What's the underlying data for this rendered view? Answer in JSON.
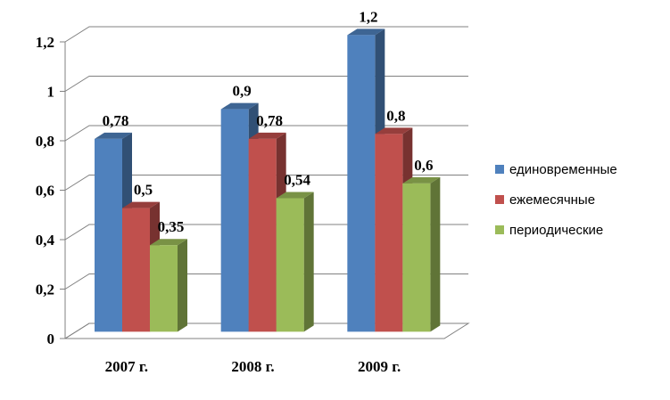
{
  "chart_data": {
    "type": "bar",
    "categories": [
      "2007 г.",
      "2008 г.",
      "2009 г."
    ],
    "series": [
      {
        "name": "единовременные",
        "values": [
          0.78,
          0.9,
          1.2
        ],
        "labels": [
          "0,78",
          "0,9",
          "1,2"
        ],
        "color": "#4F81BD"
      },
      {
        "name": "ежемесячные",
        "values": [
          0.5,
          0.78,
          0.8
        ],
        "labels": [
          "0,5",
          "0,78",
          "0,8"
        ],
        "color": "#C0504D"
      },
      {
        "name": "периодические",
        "values": [
          0.35,
          0.54,
          0.6
        ],
        "labels": [
          "0,35",
          "0,54",
          "0,6"
        ],
        "color": "#9BBB59"
      }
    ],
    "y_ticks": [
      0,
      0.2,
      0.4,
      0.6,
      0.8,
      1,
      1.2
    ],
    "y_tick_labels": [
      "0",
      "0,2",
      "0,4",
      "0,6",
      "0,8",
      "1",
      "1,2"
    ],
    "ylim": [
      0,
      1.2
    ],
    "grid": true,
    "legend_position": "right",
    "style": "3d-clustered-column"
  }
}
